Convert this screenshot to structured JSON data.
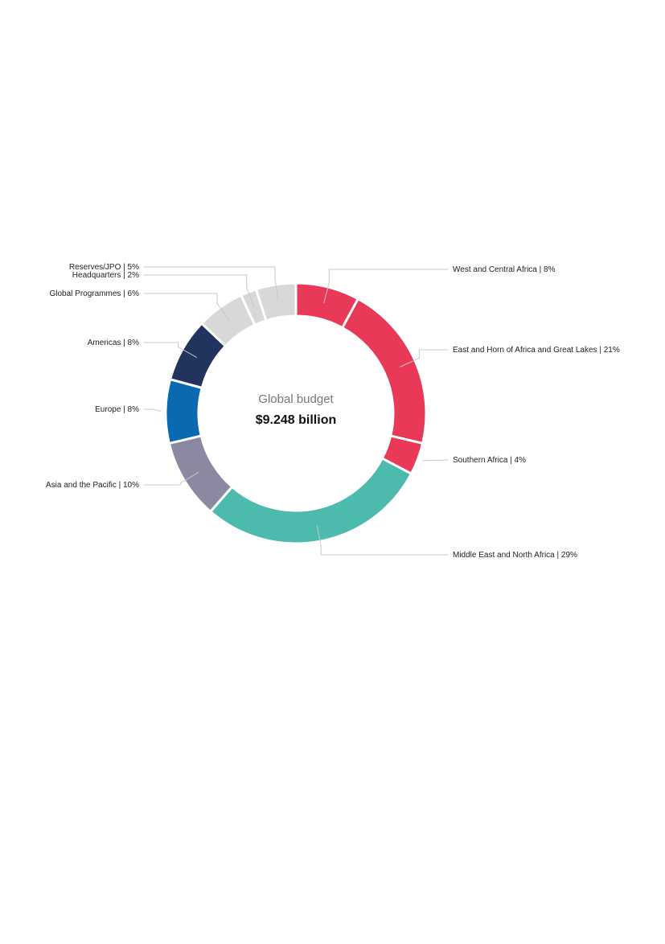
{
  "chart_data": {
    "type": "pie",
    "center": {
      "title": "Global budget",
      "value": "$9.248 billion"
    },
    "segments": [
      {
        "label": "West and Central Africa | 8%",
        "value": 8,
        "color": "#e83a58"
      },
      {
        "label": "East and Horn of Africa and Great Lakes | 21%",
        "value": 21,
        "color": "#e83a58"
      },
      {
        "label": "Southern Africa | 4%",
        "value": 4,
        "color": "#e83a58"
      },
      {
        "label": "Middle East and North Africa | 29%",
        "value": 29,
        "color": "#4cbaad"
      },
      {
        "label": "Asia and the Pacific | 10%",
        "value": 10,
        "color": "#8a89a1"
      },
      {
        "label": "Europe | 8%",
        "value": 8,
        "color": "#0a6ab1"
      },
      {
        "label": "Americas | 8%",
        "value": 8,
        "color": "#22335d"
      },
      {
        "label": "Global Programmes | 6%",
        "value": 6,
        "color": "#d8d8d8"
      },
      {
        "label": "Headquarters | 2%",
        "value": 2,
        "color": "#d8d8d8"
      },
      {
        "label": "Reserves/JPO | 5%",
        "value": 5,
        "color": "#d8d8d8"
      }
    ]
  }
}
